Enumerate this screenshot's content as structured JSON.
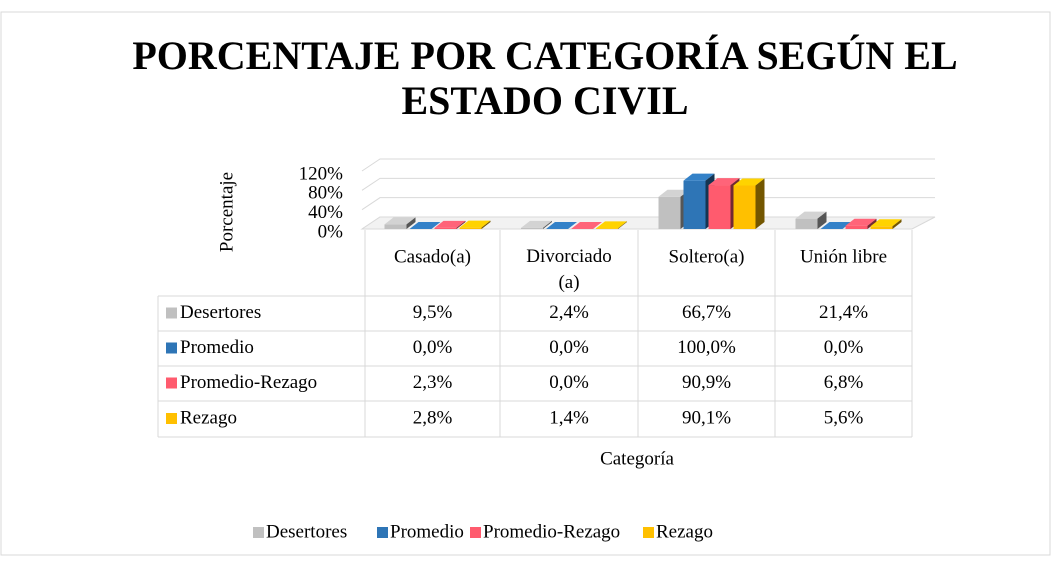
{
  "chart_data": {
    "type": "bar3d",
    "title": "PORCENTAJE POR CATEGORÍA SEGÚN EL ESTADO CIVIL",
    "y_label": "Porcentaje",
    "x_label": "Categoría",
    "categories": [
      "Casado(a)",
      "Divorciado (a)",
      "Soltero(a)",
      "Unión libre"
    ],
    "series": [
      {
        "name": "Desertores",
        "color": "#c0c0c0",
        "values": [
          9.5,
          2.4,
          66.7,
          21.4
        ],
        "value_labels": [
          "9,5%",
          "2,4%",
          "66,7%",
          "21,4%"
        ]
      },
      {
        "name": "Promedio",
        "color": "#2e75b6",
        "values": [
          0.0,
          0.0,
          100.0,
          0.0
        ],
        "value_labels": [
          "0,0%",
          "0,0%",
          "100,0%",
          "0,0%"
        ]
      },
      {
        "name": "Promedio-Rezago",
        "color": "#ff5b6e",
        "values": [
          2.3,
          0.0,
          90.9,
          6.8
        ],
        "value_labels": [
          "2,3%",
          "0,0%",
          "90,9%",
          "6,8%"
        ]
      },
      {
        "name": "Rezago",
        "color": "#ffc000",
        "values": [
          2.8,
          1.4,
          90.1,
          5.6
        ],
        "value_labels": [
          "2,8%",
          "1,4%",
          "90,1%",
          "5,6%"
        ]
      }
    ],
    "ylim": [
      0,
      120
    ],
    "yticks": [
      {
        "value": 0,
        "label": "0%"
      },
      {
        "value": 40,
        "label": "40%"
      },
      {
        "value": 80,
        "label": "80%"
      },
      {
        "value": 120,
        "label": "120%"
      }
    ],
    "grid": true,
    "legend": "bottom"
  }
}
